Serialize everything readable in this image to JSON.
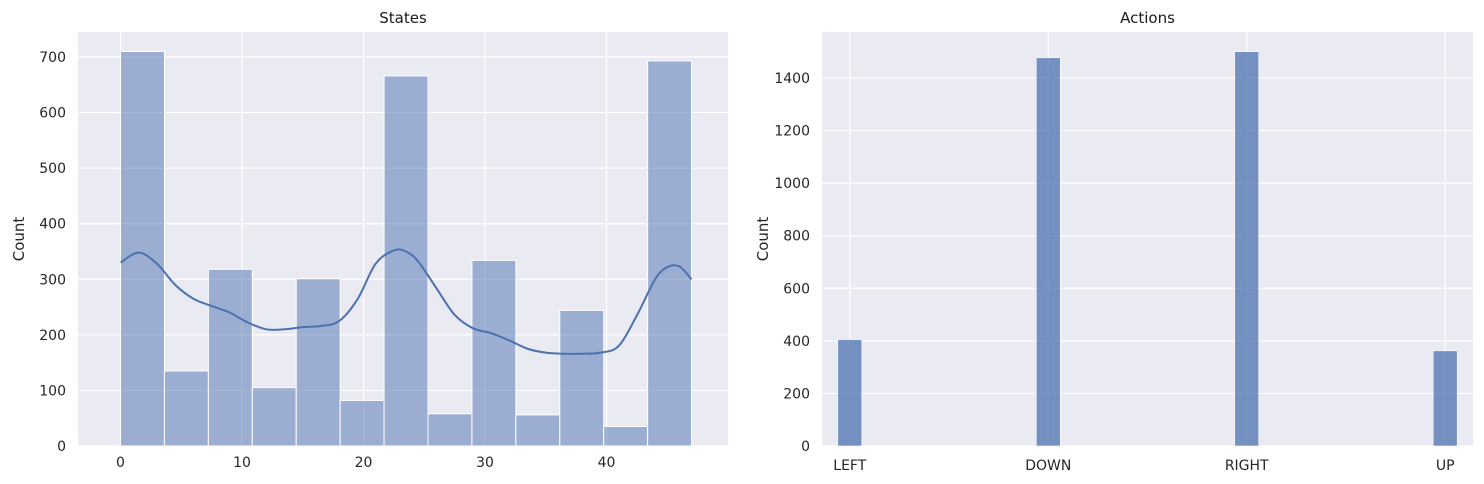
{
  "chart_data": [
    {
      "type": "bar",
      "subtype": "histogram_with_kde",
      "title": "States",
      "xlabel": "",
      "ylabel": "Count",
      "xlim": [
        -3.5,
        50
      ],
      "ylim": [
        0,
        745
      ],
      "xticks": [
        0,
        10,
        20,
        30,
        40
      ],
      "yticks": [
        0,
        100,
        200,
        300,
        400,
        500,
        600,
        700
      ],
      "grid": true,
      "bin_edges": [
        0,
        3.615,
        7.231,
        10.846,
        14.462,
        18.077,
        21.692,
        25.308,
        28.923,
        32.538,
        36.154,
        39.769,
        43.385,
        47
      ],
      "values": [
        710,
        135,
        318,
        105,
        301,
        82,
        666,
        58,
        334,
        56,
        244,
        35,
        693
      ],
      "kde": {
        "x": [
          0,
          1.5,
          3,
          4.5,
          6,
          7.5,
          9,
          10.5,
          12,
          13.5,
          15,
          16.5,
          18,
          19.5,
          21,
          22.5,
          23.5,
          24.5,
          26,
          27.5,
          29,
          30.5,
          32,
          33.5,
          35,
          36.5,
          38,
          39.5,
          41,
          42.5,
          44,
          45,
          46,
          47
        ],
        "y": [
          330,
          348,
          328,
          290,
          265,
          252,
          240,
          222,
          210,
          210,
          214,
          216,
          225,
          264,
          328,
          352,
          350,
          332,
          284,
          236,
          212,
          203,
          190,
          175,
          168,
          166,
          166,
          168,
          180,
          235,
          300,
          322,
          323,
          300
        ]
      },
      "color": "#4c72b0",
      "bar_alpha": 0.5
    },
    {
      "type": "bar",
      "subtype": "categorical_histogram",
      "title": "Actions",
      "xlabel": "",
      "ylabel": "Count",
      "categories": [
        "LEFT",
        "DOWN",
        "RIGHT",
        "UP"
      ],
      "x_positions": [
        0,
        1,
        2,
        3
      ],
      "values": [
        405,
        1477,
        1500,
        362
      ],
      "ylim": [
        0,
        1575
      ],
      "yticks": [
        0,
        200,
        400,
        600,
        800,
        1000,
        1200,
        1400
      ],
      "grid": true,
      "color": "#4c72b0",
      "bar_alpha": 0.75
    }
  ]
}
